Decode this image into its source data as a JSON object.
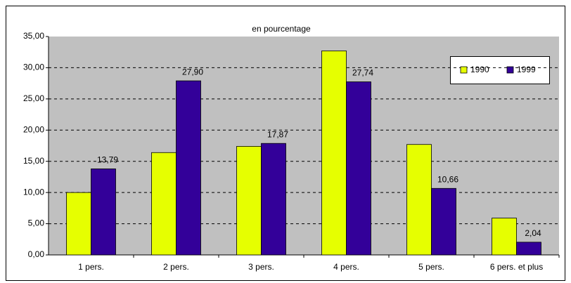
{
  "chart_data": {
    "type": "bar",
    "title": "en pourcentage",
    "categories": [
      "1 pers.",
      "2 pers.",
      "3 pers.",
      "4 pers.",
      "5 pers.",
      "6 pers. et plus"
    ],
    "series": [
      {
        "name": "1990",
        "color": "#e6ff00",
        "values": [
          10.0,
          16.4,
          17.4,
          32.7,
          17.7,
          5.9
        ]
      },
      {
        "name": "1999",
        "color": "#330099",
        "values": [
          13.79,
          27.9,
          17.87,
          27.74,
          10.66,
          2.04
        ],
        "value_labels": [
          "13,79",
          "27,90",
          "17,87",
          "27,74",
          "10,66",
          "2,04"
        ]
      }
    ],
    "ylim": [
      0,
      35
    ],
    "yticks": [
      {
        "value": 0,
        "label": "0,00"
      },
      {
        "value": 5,
        "label": "5,00"
      },
      {
        "value": 10,
        "label": "10,00"
      },
      {
        "value": 15,
        "label": "15,00"
      },
      {
        "value": 20,
        "label": "20,00"
      },
      {
        "value": 25,
        "label": "25,00"
      },
      {
        "value": 30,
        "label": "30,00"
      },
      {
        "value": 35,
        "label": "35,00"
      }
    ],
    "grid": true
  }
}
